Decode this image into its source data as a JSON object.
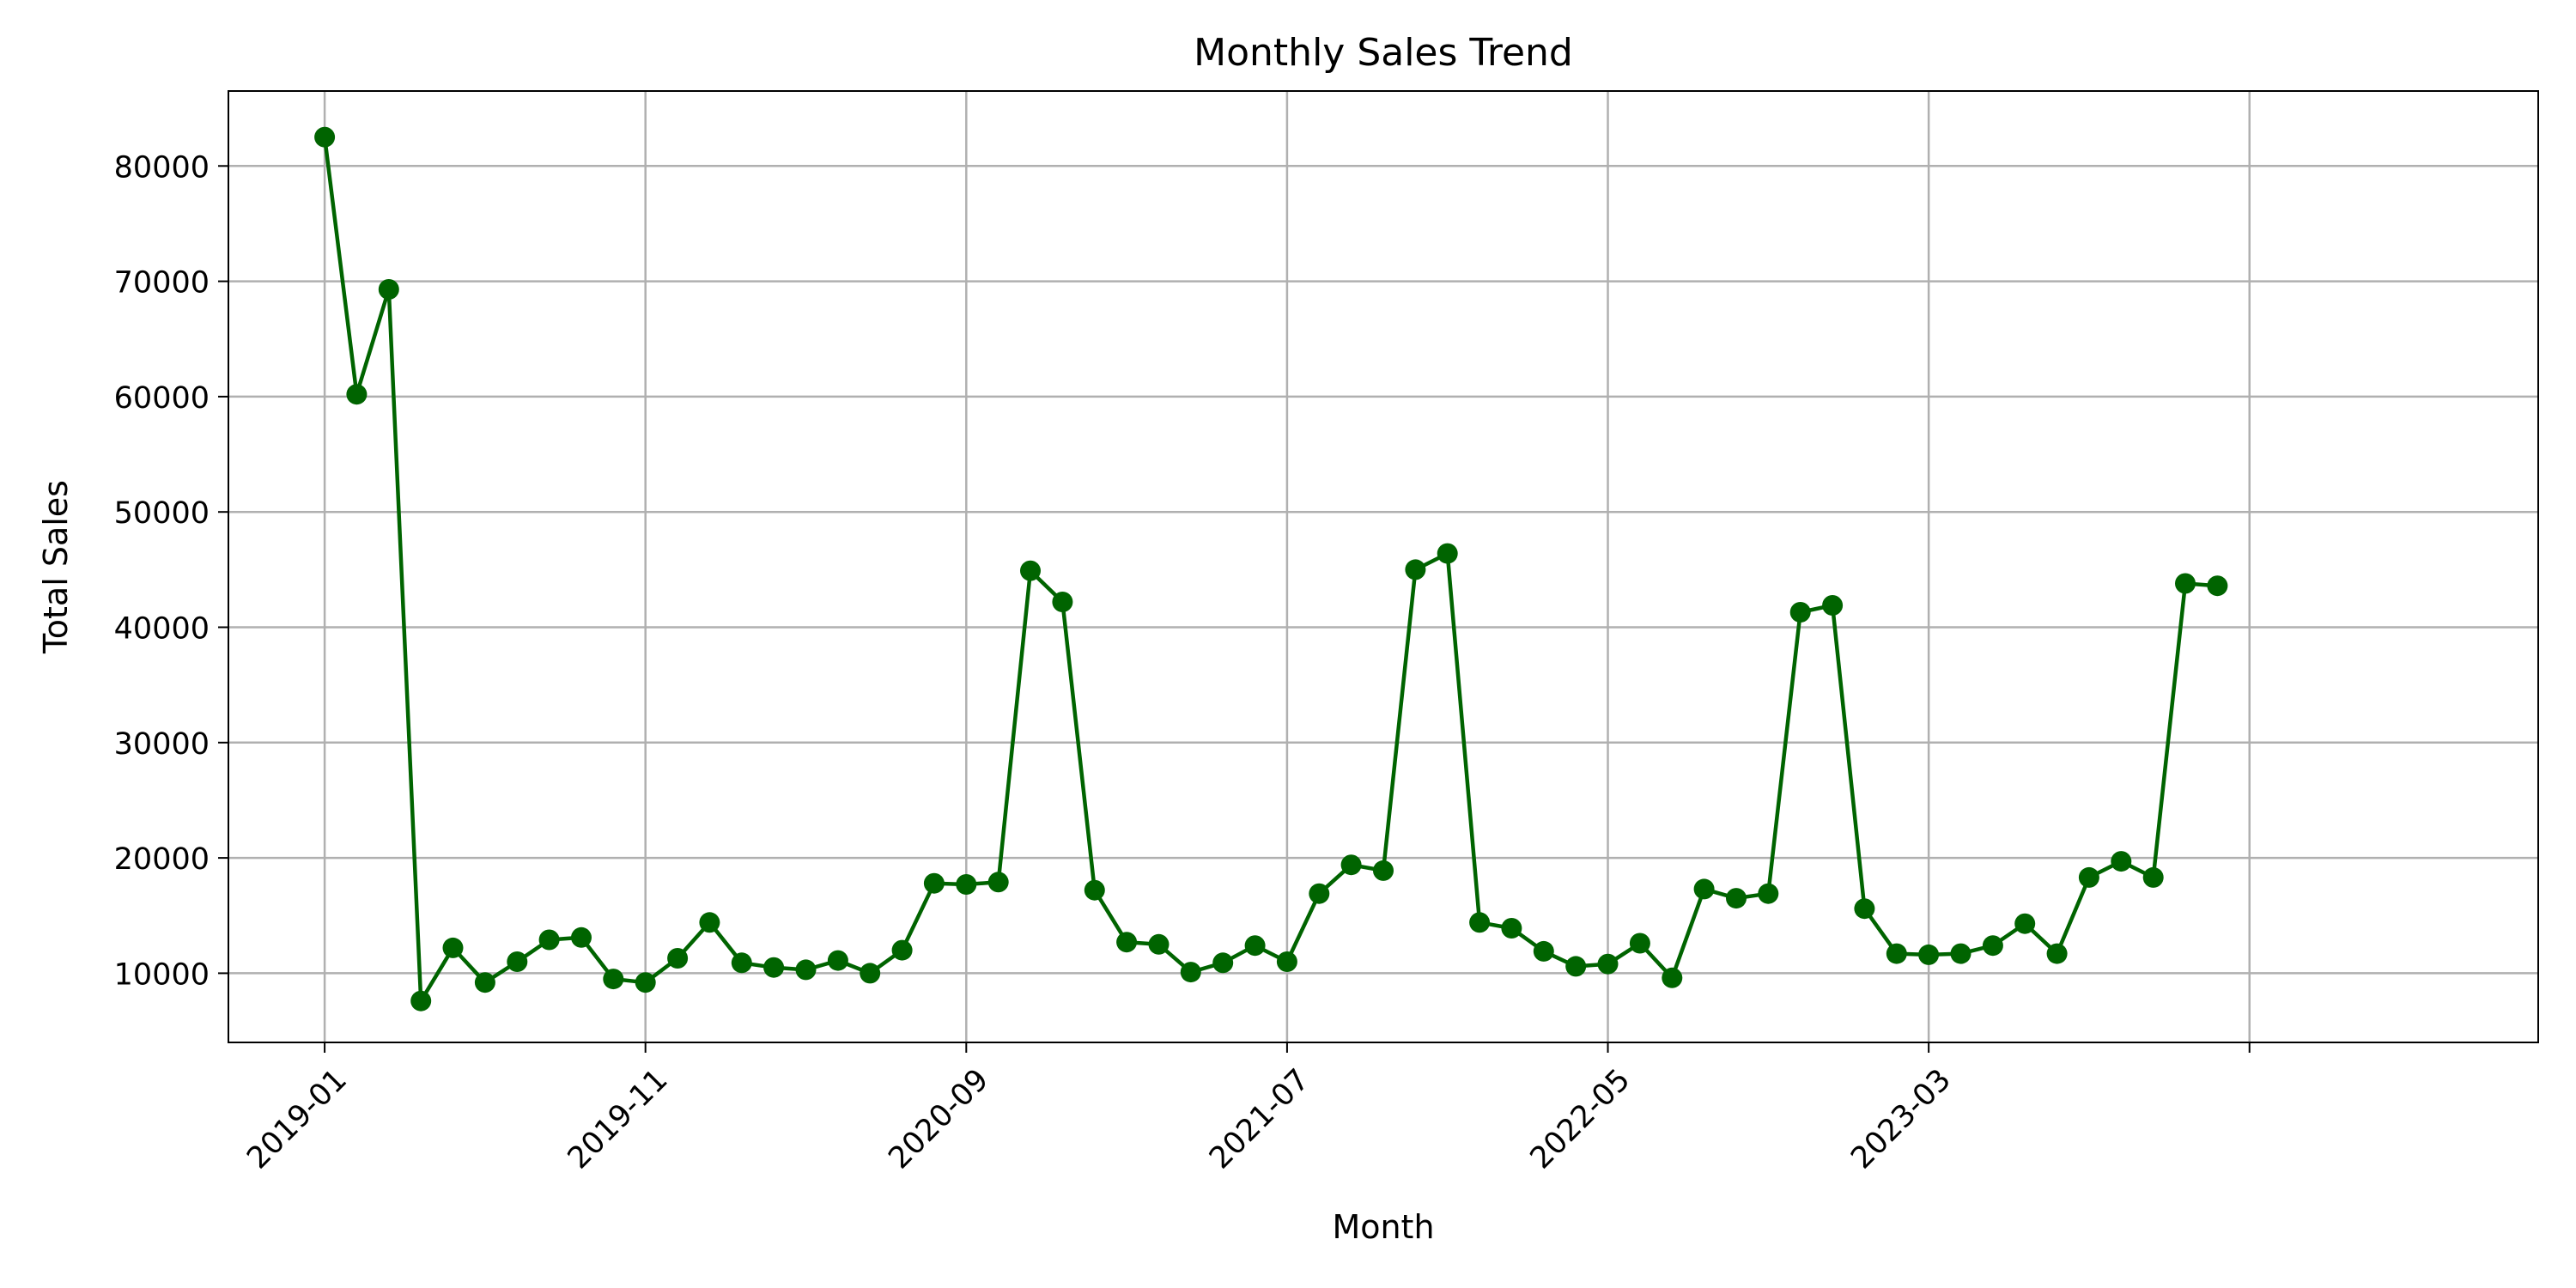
{
  "chart_data": {
    "type": "line",
    "title": "Monthly Sales Trend",
    "xlabel": "Month",
    "ylabel": "Total Sales",
    "xlim": [
      "2018-10",
      "2024-10"
    ],
    "ylim": [
      4000,
      86500
    ],
    "grid": true,
    "x_ticks": [
      "2019-01",
      "2019-11",
      "2020-09",
      "2021-07",
      "2022-05",
      "2023-03",
      "2024-01"
    ],
    "x_tick_labels": [
      "2019-01",
      "2019-11",
      "2020-09",
      "2021-07",
      "2022-05",
      "2023-03",
      ""
    ],
    "y_ticks": [
      10000,
      20000,
      30000,
      40000,
      50000,
      60000,
      70000,
      80000
    ],
    "series": [
      {
        "color": "#006400",
        "marker": "circle",
        "x": [
          "2019-01",
          "2019-02",
          "2019-03",
          "2019-04",
          "2019-05",
          "2019-06",
          "2019-07",
          "2019-08",
          "2019-09",
          "2019-10",
          "2019-11",
          "2019-12",
          "2020-01",
          "2020-02",
          "2020-03",
          "2020-04",
          "2020-05",
          "2020-06",
          "2020-07",
          "2020-08",
          "2020-09",
          "2020-10",
          "2020-11",
          "2020-12",
          "2021-01",
          "2021-02",
          "2021-03",
          "2021-04",
          "2021-05",
          "2021-06",
          "2021-07",
          "2021-08",
          "2021-09",
          "2021-10",
          "2021-11",
          "2021-12",
          "2022-01",
          "2022-02",
          "2022-03",
          "2022-04",
          "2022-05",
          "2022-06",
          "2022-07",
          "2022-08",
          "2022-09",
          "2022-10",
          "2022-11",
          "2022-12",
          "2023-01",
          "2023-02",
          "2023-03",
          "2023-04",
          "2023-05",
          "2023-06",
          "2023-07",
          "2023-08",
          "2023-09",
          "2023-10",
          "2023-11",
          "2023-12"
        ],
        "values": [
          82500,
          60200,
          69300,
          7600,
          12200,
          9200,
          11000,
          12900,
          13100,
          9500,
          9200,
          11300,
          14400,
          10900,
          10500,
          10300,
          11100,
          10000,
          12000,
          17800,
          17700,
          17900,
          44900,
          42200,
          17200,
          12700,
          12500,
          10100,
          10900,
          12400,
          11000,
          16900,
          19400,
          18900,
          45000,
          46400,
          14400,
          13900,
          11900,
          10600,
          10800,
          12600,
          9600,
          17300,
          16500,
          16900,
          41300,
          41900,
          15600,
          11700,
          11600,
          11700,
          12400,
          14300,
          11700,
          18300,
          19700,
          18300,
          43800,
          43600
        ]
      }
    ]
  }
}
